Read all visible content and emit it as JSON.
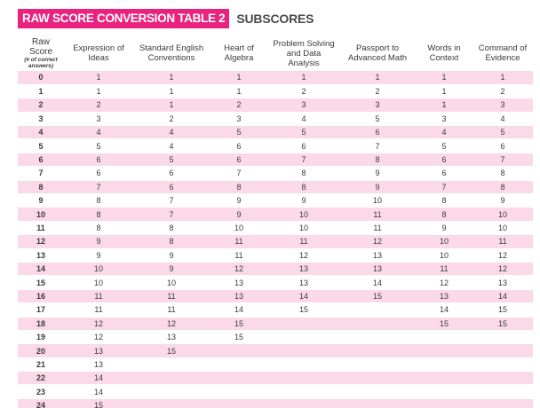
{
  "title": {
    "tag": "RAW SCORE CONVERSION TABLE 2",
    "subtitle": "SUBSCORES"
  },
  "table": {
    "raw_header": "Raw Score",
    "raw_note": "(# of correct answers)",
    "columns": [
      "Expression of Ideas",
      "Standard English Conventions",
      "Heart of Algebra",
      "Problem Solving and Data Analysis",
      "Passport to Advanced Math",
      "Words in Context",
      "Command of Evidence"
    ],
    "rows": [
      {
        "raw": "0",
        "cells": [
          "1",
          "1",
          "1",
          "1",
          "1",
          "1",
          "1"
        ]
      },
      {
        "raw": "1",
        "cells": [
          "1",
          "1",
          "1",
          "2",
          "2",
          "1",
          "2"
        ]
      },
      {
        "raw": "2",
        "cells": [
          "2",
          "1",
          "2",
          "3",
          "3",
          "1",
          "3"
        ]
      },
      {
        "raw": "3",
        "cells": [
          "3",
          "2",
          "3",
          "4",
          "5",
          "3",
          "4"
        ]
      },
      {
        "raw": "4",
        "cells": [
          "4",
          "4",
          "5",
          "5",
          "6",
          "4",
          "5"
        ]
      },
      {
        "raw": "5",
        "cells": [
          "5",
          "4",
          "6",
          "6",
          "7",
          "5",
          "6"
        ]
      },
      {
        "raw": "6",
        "cells": [
          "6",
          "5",
          "6",
          "7",
          "8",
          "6",
          "7"
        ]
      },
      {
        "raw": "7",
        "cells": [
          "6",
          "6",
          "7",
          "8",
          "9",
          "6",
          "8"
        ]
      },
      {
        "raw": "8",
        "cells": [
          "7",
          "6",
          "8",
          "8",
          "9",
          "7",
          "8"
        ]
      },
      {
        "raw": "9",
        "cells": [
          "8",
          "7",
          "9",
          "9",
          "10",
          "8",
          "9"
        ]
      },
      {
        "raw": "10",
        "cells": [
          "8",
          "7",
          "9",
          "10",
          "11",
          "8",
          "10"
        ]
      },
      {
        "raw": "11",
        "cells": [
          "8",
          "8",
          "10",
          "10",
          "11",
          "9",
          "10"
        ]
      },
      {
        "raw": "12",
        "cells": [
          "9",
          "8",
          "11",
          "11",
          "12",
          "10",
          "11"
        ]
      },
      {
        "raw": "13",
        "cells": [
          "9",
          "9",
          "11",
          "12",
          "13",
          "10",
          "12"
        ]
      },
      {
        "raw": "14",
        "cells": [
          "10",
          "9",
          "12",
          "13",
          "13",
          "11",
          "12"
        ]
      },
      {
        "raw": "15",
        "cells": [
          "10",
          "10",
          "13",
          "13",
          "14",
          "12",
          "13"
        ]
      },
      {
        "raw": "16",
        "cells": [
          "11",
          "11",
          "13",
          "14",
          "15",
          "13",
          "14"
        ]
      },
      {
        "raw": "17",
        "cells": [
          "11",
          "11",
          "14",
          "15",
          "",
          "14",
          "15"
        ]
      },
      {
        "raw": "18",
        "cells": [
          "12",
          "12",
          "15",
          "",
          "",
          "15",
          "15"
        ]
      },
      {
        "raw": "19",
        "cells": [
          "12",
          "13",
          "15",
          "",
          "",
          "",
          ""
        ]
      },
      {
        "raw": "20",
        "cells": [
          "13",
          "15",
          "",
          "",
          "",
          "",
          ""
        ]
      },
      {
        "raw": "21",
        "cells": [
          "13",
          "",
          "",
          "",
          "",
          "",
          ""
        ]
      },
      {
        "raw": "22",
        "cells": [
          "14",
          "",
          "",
          "",
          "",
          "",
          ""
        ]
      },
      {
        "raw": "23",
        "cells": [
          "14",
          "",
          "",
          "",
          "",
          "",
          ""
        ]
      },
      {
        "raw": "24",
        "cells": [
          "15",
          "",
          "",
          "",
          "",
          "",
          ""
        ]
      }
    ]
  },
  "colors": {
    "accent": "#e8227e",
    "row_tint": "#fbd9e8",
    "text": "#3a3a3a"
  }
}
